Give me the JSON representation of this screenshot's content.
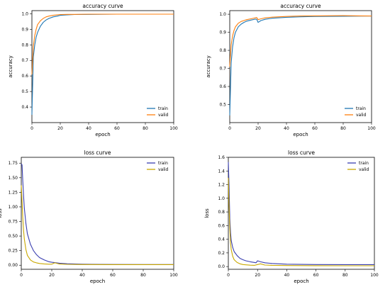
{
  "chart_data": [
    {
      "type": "line",
      "title": "accuracy curve",
      "xlabel": "epoch",
      "ylabel": "accuracy",
      "xlim": [
        0,
        100
      ],
      "ylim": [
        0.3,
        1.02
      ],
      "xticks": [
        0,
        20,
        40,
        60,
        80,
        100
      ],
      "xtick_labels": [
        "0",
        "20",
        "40",
        "60",
        "80",
        "100"
      ],
      "yticks": [
        0.4,
        0.5,
        0.6,
        0.7,
        0.8,
        0.9,
        1.0
      ],
      "ytick_labels": [
        "0.4",
        "0.5",
        "0.6",
        "0.7",
        "0.8",
        "0.9",
        "1.0"
      ],
      "legend_position": "lower-right",
      "grid": false,
      "series": [
        {
          "name": "train",
          "color": "#1f77b4",
          "x": [
            0,
            1,
            2,
            3,
            4,
            6,
            8,
            10,
            12,
            15,
            18,
            20,
            25,
            30,
            40,
            60,
            80,
            100
          ],
          "y": [
            0.35,
            0.72,
            0.8,
            0.85,
            0.88,
            0.92,
            0.945,
            0.96,
            0.97,
            0.98,
            0.985,
            0.99,
            0.993,
            0.995,
            0.996,
            0.997,
            0.997,
            0.997
          ]
        },
        {
          "name": "valid",
          "color": "#ff7f0e",
          "x": [
            0,
            1,
            2,
            3,
            4,
            6,
            8,
            10,
            12,
            15,
            18,
            20,
            25,
            30,
            40,
            60,
            80,
            100
          ],
          "y": [
            0.61,
            0.79,
            0.86,
            0.9,
            0.93,
            0.955,
            0.97,
            0.98,
            0.985,
            0.99,
            0.993,
            0.995,
            0.996,
            0.996,
            0.997,
            0.997,
            0.997,
            0.997
          ]
        }
      ]
    },
    {
      "type": "line",
      "title": "accuracy curve",
      "xlabel": "epoch",
      "ylabel": "accuracy",
      "xlim": [
        0,
        100
      ],
      "ylim": [
        0.4,
        1.02
      ],
      "xticks": [
        0,
        20,
        40,
        60,
        80,
        100
      ],
      "xtick_labels": [
        "0",
        "20",
        "40",
        "60",
        "80",
        "100"
      ],
      "yticks": [
        0.5,
        0.6,
        0.7,
        0.8,
        0.9,
        1.0
      ],
      "ytick_labels": [
        "0.5",
        "0.6",
        "0.7",
        "0.8",
        "0.9",
        "1.0"
      ],
      "legend_position": "lower-right",
      "grid": false,
      "series": [
        {
          "name": "train",
          "color": "#1f77b4",
          "x": [
            0,
            1,
            2,
            3,
            4,
            6,
            8,
            10,
            12,
            15,
            18,
            19,
            20,
            22,
            25,
            30,
            40,
            50,
            60,
            80,
            100
          ],
          "y": [
            0.44,
            0.73,
            0.82,
            0.87,
            0.9,
            0.93,
            0.945,
            0.955,
            0.962,
            0.968,
            0.973,
            0.972,
            0.955,
            0.965,
            0.972,
            0.978,
            0.983,
            0.986,
            0.988,
            0.989,
            0.99
          ]
        },
        {
          "name": "valid",
          "color": "#ff7f0e",
          "x": [
            0,
            1,
            2,
            3,
            4,
            6,
            8,
            10,
            12,
            15,
            18,
            19,
            20,
            22,
            25,
            30,
            40,
            50,
            60,
            80,
            100
          ],
          "y": [
            0.71,
            0.83,
            0.88,
            0.91,
            0.93,
            0.95,
            0.96,
            0.965,
            0.97,
            0.975,
            0.98,
            0.982,
            0.97,
            0.975,
            0.98,
            0.984,
            0.988,
            0.99,
            0.991,
            0.992,
            0.99
          ]
        }
      ]
    },
    {
      "type": "line",
      "title": "loss curve",
      "xlabel": "epoch",
      "ylabel": "loss",
      "xlim": [
        0,
        100
      ],
      "ylim": [
        -0.07,
        1.85
      ],
      "xticks": [
        0,
        20,
        40,
        60,
        80,
        100
      ],
      "xtick_labels": [
        "0",
        "20",
        "40",
        "60",
        "80",
        "100"
      ],
      "yticks": [
        0.0,
        0.25,
        0.5,
        0.75,
        1.0,
        1.25,
        1.5,
        1.75
      ],
      "ytick_labels": [
        "0.00",
        "0.25",
        "0.50",
        "0.75",
        "1.00",
        "1.25",
        "1.50",
        "1.75"
      ],
      "legend_position": "upper-right",
      "grid": false,
      "series": [
        {
          "name": "train",
          "color": "#3a3fb0",
          "x": [
            0,
            0.5,
            1,
            1.5,
            2,
            3,
            4,
            6,
            8,
            10,
            12,
            15,
            18,
            20,
            25,
            30,
            40,
            60,
            80,
            100
          ],
          "y": [
            1.74,
            1.72,
            1.45,
            1.2,
            0.98,
            0.72,
            0.54,
            0.36,
            0.25,
            0.18,
            0.13,
            0.09,
            0.06,
            0.05,
            0.035,
            0.025,
            0.018,
            0.013,
            0.012,
            0.012
          ]
        },
        {
          "name": "valid",
          "color": "#c9a800",
          "x": [
            0,
            0.5,
            1,
            1.5,
            2,
            3,
            4,
            6,
            8,
            10,
            12,
            15,
            18,
            20,
            22,
            25,
            30,
            40,
            60,
            80,
            100
          ],
          "y": [
            1.37,
            1.1,
            0.82,
            0.6,
            0.45,
            0.27,
            0.17,
            0.09,
            0.055,
            0.04,
            0.03,
            0.022,
            0.018,
            0.017,
            0.04,
            0.02,
            0.015,
            0.012,
            0.01,
            0.01,
            0.01
          ]
        }
      ]
    },
    {
      "type": "line",
      "title": "loss curve",
      "xlabel": "epoch",
      "ylabel": "loss",
      "xlim": [
        0,
        100
      ],
      "ylim": [
        -0.04,
        1.6
      ],
      "xticks": [
        0,
        20,
        40,
        60,
        80,
        100
      ],
      "xtick_labels": [
        "0",
        "20",
        "40",
        "60",
        "80",
        "100"
      ],
      "yticks": [
        0.0,
        0.2,
        0.4,
        0.6,
        0.8,
        1.0,
        1.2,
        1.4,
        1.6
      ],
      "ytick_labels": [
        "0.0",
        "0.2",
        "0.4",
        "0.6",
        "0.8",
        "1.0",
        "1.2",
        "1.4",
        "1.6"
      ],
      "legend_position": "upper-right",
      "grid": false,
      "series": [
        {
          "name": "train",
          "color": "#3a3fb0",
          "x": [
            0,
            0.5,
            1,
            1.5,
            2,
            3,
            4,
            6,
            8,
            10,
            12,
            15,
            18,
            19,
            20,
            22,
            25,
            30,
            40,
            60,
            80,
            100
          ],
          "y": [
            1.53,
            1.2,
            0.7,
            0.5,
            0.38,
            0.28,
            0.22,
            0.16,
            0.12,
            0.1,
            0.085,
            0.07,
            0.06,
            0.055,
            0.085,
            0.07,
            0.055,
            0.045,
            0.035,
            0.03,
            0.028,
            0.028
          ]
        },
        {
          "name": "valid",
          "color": "#c9a800",
          "x": [
            0,
            0.5,
            1,
            1.5,
            2,
            3,
            4,
            6,
            8,
            10,
            12,
            15,
            18,
            20,
            22,
            25,
            30,
            40,
            60,
            80,
            100
          ],
          "y": [
            1.3,
            0.9,
            0.55,
            0.35,
            0.25,
            0.15,
            0.1,
            0.06,
            0.04,
            0.03,
            0.025,
            0.02,
            0.018,
            0.03,
            0.04,
            0.022,
            0.018,
            0.015,
            0.013,
            0.012,
            0.012
          ]
        }
      ]
    }
  ]
}
